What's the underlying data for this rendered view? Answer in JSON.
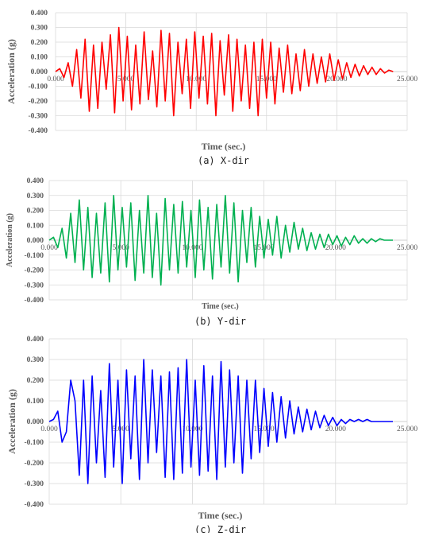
{
  "panels": [
    {
      "caption": "(a) X-dir",
      "chart_data": {
        "type": "line",
        "xlabel": "Time (sec.)",
        "ylabel": "Acceleration (g)",
        "xlim": [
          0,
          25
        ],
        "ylim": [
          -0.4,
          0.4
        ],
        "x_ticks": [
          "0.000",
          "5.000",
          "10.000",
          "15.000",
          "20.000",
          "25.000"
        ],
        "y_ticks": [
          "0.400",
          "0.300",
          "0.200",
          "0.100",
          "0.000",
          "-0.100",
          "-0.200",
          "-0.300",
          "-0.400"
        ],
        "grid": true,
        "series": [
          {
            "color": "#ff0000",
            "x": [
              0.0,
              0.3,
              0.6,
              0.9,
              1.2,
              1.5,
              1.8,
              2.1,
              2.4,
              2.7,
              3.0,
              3.3,
              3.6,
              3.9,
              4.2,
              4.5,
              4.8,
              5.1,
              5.4,
              5.7,
              6.0,
              6.3,
              6.6,
              6.9,
              7.2,
              7.5,
              7.8,
              8.1,
              8.4,
              8.7,
              9.0,
              9.3,
              9.6,
              9.9,
              10.2,
              10.5,
              10.8,
              11.1,
              11.4,
              11.7,
              12.0,
              12.3,
              12.6,
              12.9,
              13.2,
              13.5,
              13.8,
              14.1,
              14.4,
              14.7,
              15.0,
              15.3,
              15.6,
              15.9,
              16.2,
              16.5,
              16.8,
              17.1,
              17.4,
              17.7,
              18.0,
              18.3,
              18.6,
              18.9,
              19.2,
              19.5,
              19.8,
              20.1,
              20.4,
              20.7,
              21.0,
              21.3,
              21.6,
              21.9,
              22.2,
              22.5,
              22.8,
              23.1,
              23.4,
              23.7,
              24.0
            ],
            "y": [
              0.0,
              0.02,
              -0.04,
              0.06,
              -0.1,
              0.15,
              -0.18,
              0.22,
              -0.27,
              0.18,
              -0.25,
              0.2,
              -0.12,
              0.25,
              -0.28,
              0.3,
              -0.2,
              0.24,
              -0.26,
              0.18,
              -0.22,
              0.27,
              -0.19,
              0.14,
              -0.24,
              0.28,
              -0.2,
              0.26,
              -0.3,
              0.2,
              -0.15,
              0.22,
              -0.25,
              0.27,
              -0.18,
              0.24,
              -0.22,
              0.26,
              -0.3,
              0.21,
              -0.16,
              0.25,
              -0.27,
              0.22,
              -0.2,
              0.18,
              -0.25,
              0.2,
              -0.3,
              0.22,
              -0.18,
              0.2,
              -0.22,
              0.16,
              -0.14,
              0.18,
              -0.15,
              0.12,
              -0.13,
              0.15,
              -0.1,
              0.12,
              -0.08,
              0.1,
              -0.07,
              0.12,
              -0.06,
              0.08,
              -0.05,
              0.06,
              -0.04,
              0.05,
              -0.03,
              0.04,
              -0.02,
              0.03,
              -0.02,
              0.02,
              -0.01,
              0.01,
              0.0
            ]
          }
        ]
      }
    },
    {
      "caption": "(b) Y-dir",
      "chart_data": {
        "type": "line",
        "xlabel": "Time (sec.)",
        "ylabel": "Acceleration (g)",
        "xlim": [
          0,
          25
        ],
        "ylim": [
          -0.4,
          0.4
        ],
        "x_ticks": [
          "0.000",
          "5.000",
          "10.000",
          "15.000",
          "20.000",
          "25.000"
        ],
        "y_ticks": [
          "0.400",
          "0.300",
          "0.200",
          "0.100",
          "0.000",
          "-0.100",
          "-0.200",
          "-0.300",
          "-0.400"
        ],
        "grid": true,
        "series": [
          {
            "color": "#00b050",
            "x": [
              0.0,
              0.3,
              0.6,
              0.9,
              1.2,
              1.5,
              1.8,
              2.1,
              2.4,
              2.7,
              3.0,
              3.3,
              3.6,
              3.9,
              4.2,
              4.5,
              4.8,
              5.1,
              5.4,
              5.7,
              6.0,
              6.3,
              6.6,
              6.9,
              7.2,
              7.5,
              7.8,
              8.1,
              8.4,
              8.7,
              9.0,
              9.3,
              9.6,
              9.9,
              10.2,
              10.5,
              10.8,
              11.1,
              11.4,
              11.7,
              12.0,
              12.3,
              12.6,
              12.9,
              13.2,
              13.5,
              13.8,
              14.1,
              14.4,
              14.7,
              15.0,
              15.3,
              15.6,
              15.9,
              16.2,
              16.5,
              16.8,
              17.1,
              17.4,
              17.7,
              18.0,
              18.3,
              18.6,
              18.9,
              19.2,
              19.5,
              19.8,
              20.1,
              20.4,
              20.7,
              21.0,
              21.3,
              21.6,
              21.9,
              22.2,
              22.5,
              22.8,
              23.1,
              23.4,
              23.7,
              24.0
            ],
            "y": [
              0.0,
              0.02,
              -0.05,
              0.08,
              -0.12,
              0.18,
              -0.15,
              0.27,
              -0.2,
              0.22,
              -0.25,
              0.18,
              -0.22,
              0.25,
              -0.28,
              0.3,
              -0.2,
              0.22,
              -0.18,
              0.25,
              -0.27,
              0.2,
              -0.22,
              0.3,
              -0.25,
              0.18,
              -0.3,
              0.28,
              -0.2,
              0.24,
              -0.22,
              0.26,
              -0.18,
              0.2,
              -0.25,
              0.27,
              -0.2,
              0.22,
              -0.26,
              0.24,
              -0.18,
              0.3,
              -0.22,
              0.25,
              -0.28,
              0.2,
              -0.15,
              0.22,
              -0.18,
              0.16,
              -0.12,
              0.14,
              -0.1,
              0.16,
              -0.12,
              0.1,
              -0.08,
              0.12,
              -0.06,
              0.08,
              -0.07,
              0.05,
              -0.06,
              0.04,
              -0.05,
              0.04,
              -0.03,
              0.03,
              -0.04,
              0.02,
              -0.03,
              0.03,
              -0.02,
              0.01,
              -0.02,
              0.01,
              -0.01,
              0.01,
              0.0,
              0.0,
              0.0
            ]
          }
        ]
      }
    },
    {
      "caption": "(c) Z-dir",
      "chart_data": {
        "type": "line",
        "xlabel": "Time (sec.)",
        "ylabel": "Acceleration (g)",
        "xlim": [
          0,
          25
        ],
        "ylim": [
          -0.4,
          0.4
        ],
        "x_ticks": [
          "0.000",
          "5.000",
          "10.000",
          "15.000",
          "20.000",
          "25.000"
        ],
        "y_ticks": [
          "0.400",
          "0.300",
          "0.200",
          "0.100",
          "0.000",
          "-0.100",
          "-0.200",
          "-0.300",
          "-0.400"
        ],
        "grid": true,
        "series": [
          {
            "color": "#0000ff",
            "x": [
              0.0,
              0.3,
              0.6,
              0.9,
              1.2,
              1.5,
              1.8,
              2.1,
              2.4,
              2.7,
              3.0,
              3.3,
              3.6,
              3.9,
              4.2,
              4.5,
              4.8,
              5.1,
              5.4,
              5.7,
              6.0,
              6.3,
              6.6,
              6.9,
              7.2,
              7.5,
              7.8,
              8.1,
              8.4,
              8.7,
              9.0,
              9.3,
              9.6,
              9.9,
              10.2,
              10.5,
              10.8,
              11.1,
              11.4,
              11.7,
              12.0,
              12.3,
              12.6,
              12.9,
              13.2,
              13.5,
              13.8,
              14.1,
              14.4,
              14.7,
              15.0,
              15.3,
              15.6,
              15.9,
              16.2,
              16.5,
              16.8,
              17.1,
              17.4,
              17.7,
              18.0,
              18.3,
              18.6,
              18.9,
              19.2,
              19.5,
              19.8,
              20.1,
              20.4,
              20.7,
              21.0,
              21.3,
              21.6,
              21.9,
              22.2,
              22.5,
              22.8,
              23.1,
              23.4,
              23.7,
              24.0
            ],
            "y": [
              0.0,
              0.01,
              0.05,
              -0.1,
              -0.05,
              0.2,
              0.1,
              -0.26,
              0.2,
              -0.3,
              0.22,
              -0.2,
              0.15,
              -0.27,
              0.28,
              -0.22,
              0.2,
              -0.3,
              0.25,
              -0.18,
              0.22,
              -0.28,
              0.3,
              -0.2,
              0.25,
              -0.15,
              0.22,
              -0.27,
              0.24,
              -0.28,
              0.26,
              -0.25,
              0.3,
              -0.22,
              0.2,
              -0.26,
              0.27,
              -0.24,
              0.22,
              -0.28,
              0.29,
              -0.22,
              0.25,
              -0.2,
              0.22,
              -0.25,
              0.2,
              -0.18,
              0.2,
              -0.15,
              0.16,
              -0.12,
              0.14,
              -0.1,
              0.12,
              -0.08,
              0.1,
              -0.06,
              0.07,
              -0.05,
              0.06,
              -0.04,
              0.05,
              -0.03,
              0.03,
              -0.02,
              0.02,
              -0.02,
              0.01,
              -0.01,
              0.01,
              0.0,
              0.01,
              0.0,
              0.01,
              0.0,
              0.0,
              0.0,
              0.0,
              0.0,
              0.0
            ]
          }
        ]
      }
    }
  ]
}
